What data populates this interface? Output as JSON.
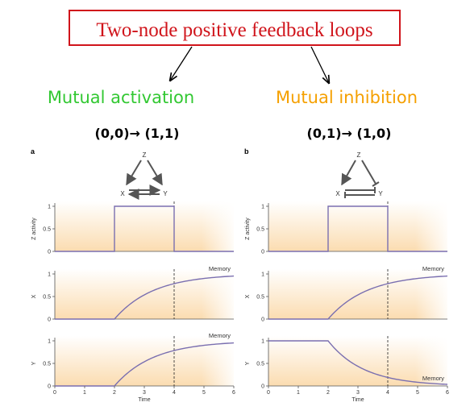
{
  "title": "Two-node positive feedback loops",
  "colors": {
    "title_border": "#d0141b",
    "curve": "#7a6fb0",
    "activation": "#32c832",
    "inhibition": "#f5a000"
  },
  "panels": [
    {
      "id": "a",
      "letter": "a",
      "heading": "Mutual activation",
      "transition": "(0,0)→ (1,1)",
      "network": {
        "top": "Z",
        "left": "X",
        "right": "Y",
        "type": "activation"
      },
      "plots": [
        {
          "ylabel": "Z activity",
          "series": "z",
          "memory": ""
        },
        {
          "ylabel": "X",
          "series": "rise",
          "memory": "Memory"
        },
        {
          "ylabel": "Y",
          "series": "rise",
          "memory": "Memory"
        }
      ]
    },
    {
      "id": "b",
      "letter": "b",
      "heading": "Mutual inhibition",
      "transition": "(0,1)→ (1,0)",
      "network": {
        "top": "Z",
        "left": "X",
        "right": "Y",
        "type": "inhibition"
      },
      "plots": [
        {
          "ylabel": "Z activity",
          "series": "z",
          "memory": ""
        },
        {
          "ylabel": "X",
          "series": "rise",
          "memory": "Memory"
        },
        {
          "ylabel": "Y",
          "series": "fall",
          "memory": "Memory"
        }
      ]
    }
  ],
  "axis": {
    "xlabel": "Time",
    "xticks": [
      "0",
      "1",
      "2",
      "3",
      "4",
      "5",
      "6"
    ],
    "yticks": [
      "0",
      "0.5",
      "1"
    ],
    "xlim": [
      0,
      6
    ],
    "ylim": [
      0,
      1
    ]
  },
  "signal": {
    "z_on": 2,
    "z_off": 4,
    "dashed_at": 4
  }
}
